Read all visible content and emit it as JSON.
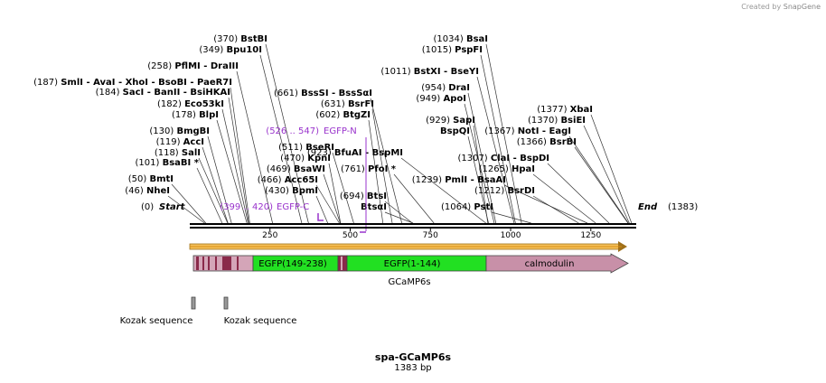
{
  "credit": {
    "prefix": "Created by",
    "brand": "SnapGene"
  },
  "map": {
    "name": "spa-GCaMP6s",
    "size_label": "1383 bp",
    "length": 1383,
    "start_label": "Start",
    "end_label": "End",
    "start_pos": "(0)",
    "end_pos": "(1383)",
    "ruler_ticks": [
      250,
      500,
      750,
      1000,
      1250
    ]
  },
  "sites": [
    {
      "pos": 46,
      "pos_label": "(46)",
      "name": "NheI"
    },
    {
      "pos": 50,
      "pos_label": "(50)",
      "name": "BmtI"
    },
    {
      "pos": 101,
      "pos_label": "(101)",
      "name": "BsaBI *"
    },
    {
      "pos": 118,
      "pos_label": "(118)",
      "name": "SalI"
    },
    {
      "pos": 119,
      "pos_label": "(119)",
      "name": "AccI"
    },
    {
      "pos": 130,
      "pos_label": "(130)",
      "name": "BmgBI"
    },
    {
      "pos": 178,
      "pos_label": "(178)",
      "name": "BlpI"
    },
    {
      "pos": 182,
      "pos_label": "(182)",
      "name": "Eco53kI"
    },
    {
      "pos": 184,
      "pos_label": "(184)",
      "name": "SacI   -  BanII   -  BsiHKAI"
    },
    {
      "pos": 187,
      "pos_label": "(187)",
      "name": "SmlI   -  AvaI   -  XhoI   -  BsoBI   -  PaeR7I"
    },
    {
      "pos": 258,
      "pos_label": "(258)",
      "name": "PflMI   -  DraIII"
    },
    {
      "pos": 349,
      "pos_label": "(349)",
      "name": "Bpu10I"
    },
    {
      "pos": 370,
      "pos_label": "(370)",
      "name": "BstBI"
    },
    {
      "pos": 430,
      "pos_label": "(430)",
      "name": "BpmI"
    },
    {
      "pos": 466,
      "pos_label": "(466)",
      "name": "Acc65I"
    },
    {
      "pos": 469,
      "pos_label": "(469)",
      "name": "BsaWI"
    },
    {
      "pos": 470,
      "pos_label": "(470)",
      "name": "KpnI"
    },
    {
      "pos": 511,
      "pos_label": "(511)",
      "name": "BseRI"
    },
    {
      "pos": 602,
      "pos_label": "(602)",
      "name": "BtgZI"
    },
    {
      "pos": 631,
      "pos_label": "(631)",
      "name": "BsrFI"
    },
    {
      "pos": 661,
      "pos_label": "(661)",
      "name": "BssSI   -  BssSαI"
    },
    {
      "pos": 694,
      "pos_label": "(694)",
      "name": "BtsI"
    },
    {
      "pos": 696,
      "pos_label": "",
      "name": "BtsαI"
    },
    {
      "pos": 761,
      "pos_label": "(761)",
      "name": "PfoI *"
    },
    {
      "pos": 923,
      "pos_label": "(923)",
      "name": "BfuAI   -  BspMI"
    },
    {
      "pos": 929,
      "pos_label": "(929)",
      "name": "SapI"
    },
    {
      "pos": 931,
      "pos_label": "",
      "name": "BspQI"
    },
    {
      "pos": 949,
      "pos_label": "(949)",
      "name": "ApoI"
    },
    {
      "pos": 954,
      "pos_label": "(954)",
      "name": "DraI"
    },
    {
      "pos": 1011,
      "pos_label": "(1011)",
      "name": "BstXI   -  BseYI"
    },
    {
      "pos": 1015,
      "pos_label": "(1015)",
      "name": "PspFI"
    },
    {
      "pos": 1034,
      "pos_label": "(1034)",
      "name": "BsaI"
    },
    {
      "pos": 1064,
      "pos_label": "(1064)",
      "name": "PstI"
    },
    {
      "pos": 1212,
      "pos_label": "(1212)",
      "name": "BsrDI"
    },
    {
      "pos": 1239,
      "pos_label": "(1239)",
      "name": "PmlI   -  BsaAI"
    },
    {
      "pos": 1265,
      "pos_label": "(1265)",
      "name": "HpaI"
    },
    {
      "pos": 1307,
      "pos_label": "(1307)",
      "name": "ClaI   -  BspDI"
    },
    {
      "pos": 1366,
      "pos_label": "(1366)",
      "name": "BsrBI"
    },
    {
      "pos": 1367,
      "pos_label": "(1367)",
      "name": "NotI   -  EagI"
    },
    {
      "pos": 1370,
      "pos_label": "(1370)",
      "name": "BsiEI"
    },
    {
      "pos": 1377,
      "pos_label": "(1377)",
      "name": "XbaI"
    }
  ],
  "primers": [
    {
      "name": "EGFP-C",
      "range_label": "(399 .. 420)",
      "start": 399,
      "end": 420
    },
    {
      "name": "EGFP-N",
      "range_label": "(526 .. 547)",
      "start": 526,
      "end": 547
    }
  ],
  "features": [
    {
      "label": "GCaMP6s",
      "sub": [
        {
          "label": "EGFP(149-238)",
          "color": "#22e022"
        },
        {
          "label": "EGFP(1-144)",
          "color": "#22e022"
        },
        {
          "label": "calmodulin",
          "color": "#c890a8"
        }
      ]
    },
    {
      "label": "Kozak sequence",
      "start": 1,
      "end": 10
    },
    {
      "label": "Kozak sequence",
      "start": 106,
      "end": 115
    }
  ],
  "colors": {
    "primer": "#9933cc",
    "orf": "#f0a030",
    "egfp": "#22e022",
    "calmodulin": "#c890a8",
    "linker": "#d4a5b8",
    "linker_dark": "#8a2a4a",
    "kozak": "#999999"
  }
}
